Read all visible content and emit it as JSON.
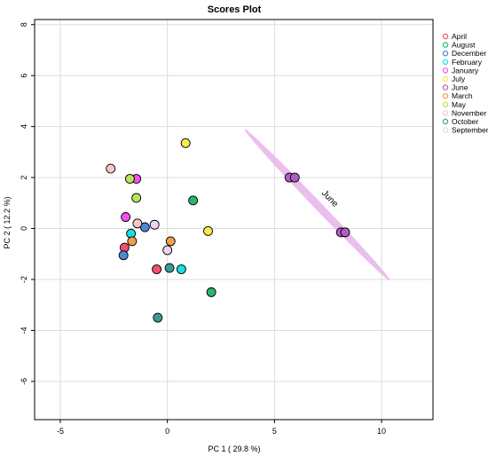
{
  "chart_data": {
    "type": "scatter",
    "title": "Scores Plot",
    "xlabel": "PC 1 ( 29.8 %)",
    "ylabel": "PC 2 ( 12.2 %)",
    "xlim": [
      -6.2,
      12.4
    ],
    "ylim": [
      -7.5,
      8.2
    ],
    "x_ticks": [
      -5,
      0,
      5,
      10
    ],
    "y_ticks": [
      -6,
      -4,
      -2,
      0,
      2,
      4,
      6,
      8
    ],
    "grid": true,
    "legend_position": "right",
    "series": [
      {
        "name": "April",
        "color": "#f0506e",
        "points": [
          [
            -0.5,
            -1.6
          ],
          [
            -2.0,
            -0.75
          ]
        ]
      },
      {
        "name": "August",
        "color": "#2ab56e",
        "points": [
          [
            1.2,
            1.1
          ],
          [
            2.05,
            -2.5
          ]
        ]
      },
      {
        "name": "December",
        "color": "#4f86d6",
        "points": [
          [
            -2.05,
            -1.05
          ],
          [
            -1.05,
            0.05
          ]
        ]
      },
      {
        "name": "February",
        "color": "#14e0e6",
        "points": [
          [
            -1.7,
            -0.2
          ],
          [
            0.65,
            -1.6
          ]
        ]
      },
      {
        "name": "January",
        "color": "#f050f0",
        "points": [
          [
            -1.45,
            1.95
          ],
          [
            -1.95,
            0.45
          ]
        ]
      },
      {
        "name": "July",
        "color": "#f7ea50",
        "points": [
          [
            0.85,
            3.35
          ],
          [
            1.9,
            -0.1
          ]
        ]
      },
      {
        "name": "June",
        "color": "#b05ec4",
        "points": [
          [
            5.7,
            2.0
          ],
          [
            5.95,
            2.0
          ],
          [
            8.1,
            -0.15
          ],
          [
            8.3,
            -0.15
          ]
        ]
      },
      {
        "name": "March",
        "color": "#f0a050",
        "points": [
          [
            -1.65,
            -0.5
          ],
          [
            0.15,
            -0.5
          ]
        ]
      },
      {
        "name": "May",
        "color": "#b4e65a",
        "points": [
          [
            -1.75,
            1.95
          ],
          [
            -1.45,
            1.2
          ]
        ]
      },
      {
        "name": "November",
        "color": "#f8c6c6",
        "points": [
          [
            -2.65,
            2.35
          ],
          [
            -1.4,
            0.2
          ]
        ]
      },
      {
        "name": "October",
        "color": "#3c9a96",
        "points": [
          [
            -0.45,
            -3.5
          ],
          [
            0.1,
            -1.55
          ]
        ]
      },
      {
        "name": "September",
        "color": "#f0d2f2",
        "points": [
          [
            -0.6,
            0.15
          ],
          [
            0.0,
            -0.85
          ]
        ]
      }
    ],
    "annotations": [
      {
        "text": "June",
        "x": 7.5,
        "y": 1.1,
        "color": "#e6b4ea"
      }
    ]
  }
}
